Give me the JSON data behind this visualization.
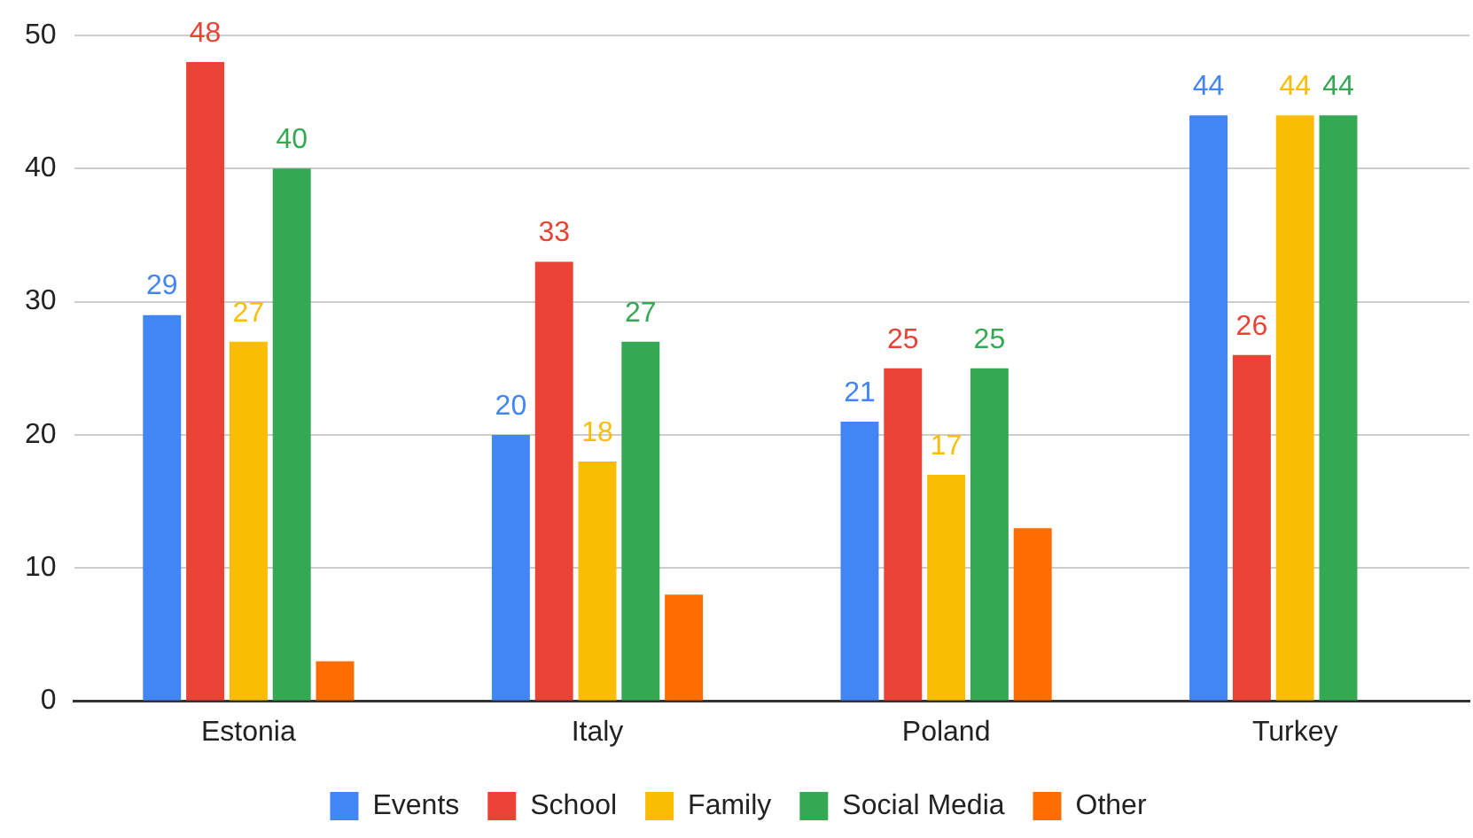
{
  "chart_data": {
    "type": "bar",
    "categories": [
      "Estonia",
      "Italy",
      "Poland",
      "Turkey"
    ],
    "series": [
      {
        "name": "Events",
        "color": "#4285f4",
        "values": [
          29,
          20,
          21,
          44
        ],
        "value_labels": [
          "29",
          "20",
          "21",
          "44"
        ]
      },
      {
        "name": "School",
        "color": "#ea4335",
        "values": [
          48,
          33,
          25,
          26
        ],
        "value_labels": [
          "48",
          "33",
          "25",
          "26"
        ]
      },
      {
        "name": "Family",
        "color": "#fbbc04",
        "values": [
          27,
          18,
          17,
          44
        ],
        "value_labels": [
          "27",
          "18",
          "17",
          "44"
        ]
      },
      {
        "name": "Social Media",
        "color": "#34a853",
        "values": [
          40,
          27,
          25,
          44
        ],
        "value_labels": [
          "40",
          "27",
          "25",
          "44"
        ]
      },
      {
        "name": "Other",
        "color": "#ff6d01",
        "values": [
          3,
          8,
          13,
          null
        ]
      }
    ],
    "ylim": [
      0,
      50
    ],
    "yticks": [
      0,
      10,
      20,
      30,
      40,
      50
    ],
    "grid": "y",
    "legend": "bottom"
  }
}
